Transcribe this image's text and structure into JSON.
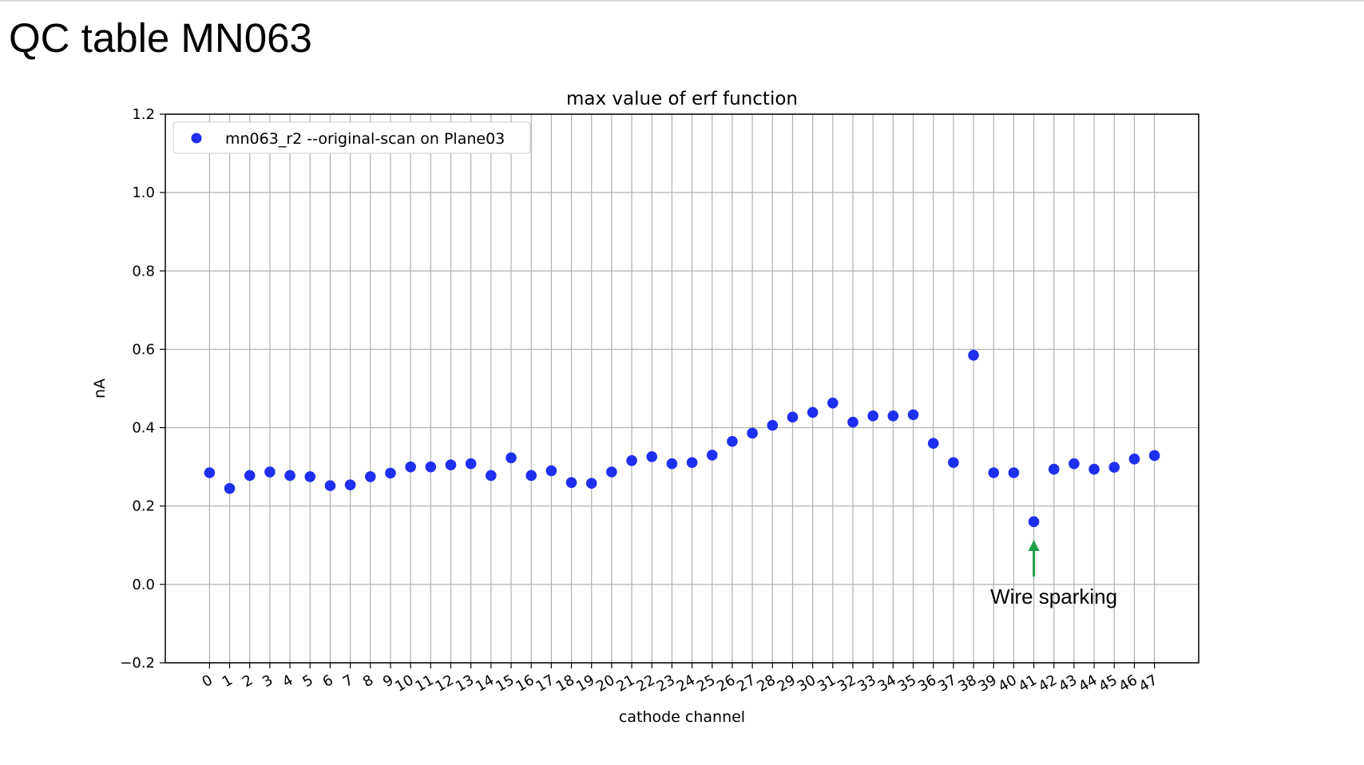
{
  "slide": {
    "title": "QC table MN063"
  },
  "chart_data": {
    "type": "scatter",
    "title": "max value of erf function",
    "xlabel": "cathode channel",
    "ylabel": "nA",
    "ylim": [
      -0.2,
      1.2
    ],
    "yticks": [
      -0.2,
      0.0,
      0.2,
      0.4,
      0.6,
      0.8,
      1.0,
      1.2
    ],
    "ytick_labels": [
      "−0.2",
      "0.0",
      "0.2",
      "0.4",
      "0.6",
      "0.8",
      "1.0",
      "1.2"
    ],
    "x_ticks": [
      0,
      1,
      2,
      3,
      4,
      5,
      6,
      7,
      8,
      9,
      10,
      11,
      12,
      13,
      14,
      15,
      16,
      17,
      18,
      19,
      20,
      21,
      22,
      23,
      24,
      25,
      26,
      27,
      28,
      29,
      30,
      31,
      32,
      33,
      34,
      35,
      36,
      37,
      38,
      39,
      40,
      41,
      42,
      43,
      44,
      45,
      46,
      47
    ],
    "x_tick_labels": [
      "0",
      "1",
      "2",
      "3",
      "4",
      "5",
      "6",
      "7",
      "8",
      "9",
      "10",
      "11",
      "12",
      "13",
      "14",
      "15",
      "16",
      "17",
      "18",
      "19",
      "20",
      "21",
      "22",
      "23",
      "24",
      "25",
      "26",
      "27",
      "28",
      "29",
      "30",
      "31",
      "32",
      "33",
      "34",
      "35",
      "36",
      "37",
      "38",
      "39",
      "40",
      "41",
      "42",
      "43",
      "44",
      "45",
      "46",
      "47"
    ],
    "grid": true,
    "legend": {
      "placement": "top-left",
      "color": "#1f2ff0"
    },
    "series": [
      {
        "name": "mn063_r2 --original-scan on Plane03",
        "color": "#1f2ff0",
        "x": [
          0,
          1,
          2,
          3,
          4,
          5,
          6,
          7,
          8,
          9,
          10,
          11,
          12,
          13,
          14,
          15,
          16,
          17,
          18,
          19,
          20,
          21,
          22,
          23,
          24,
          25,
          26,
          27,
          28,
          29,
          30,
          31,
          32,
          33,
          34,
          35,
          36,
          37,
          38,
          39,
          40,
          41,
          42,
          43,
          44,
          45,
          46,
          47
        ],
        "y": [
          0.285,
          0.245,
          0.278,
          0.287,
          0.278,
          0.275,
          0.252,
          0.254,
          0.275,
          0.284,
          0.3,
          0.3,
          0.305,
          0.308,
          0.278,
          0.323,
          0.278,
          0.29,
          0.26,
          0.258,
          0.287,
          0.316,
          0.326,
          0.308,
          0.311,
          0.33,
          0.365,
          0.386,
          0.406,
          0.427,
          0.439,
          0.463,
          0.414,
          0.43,
          0.43,
          0.433,
          0.36,
          0.311,
          0.585,
          0.285,
          0.285,
          0.16,
          0.294,
          0.308,
          0.294,
          0.299,
          0.32,
          0.329
        ]
      }
    ],
    "annotation": {
      "text": "Wire sparking",
      "x": 41,
      "arrow_color": "#1fa04a"
    }
  }
}
